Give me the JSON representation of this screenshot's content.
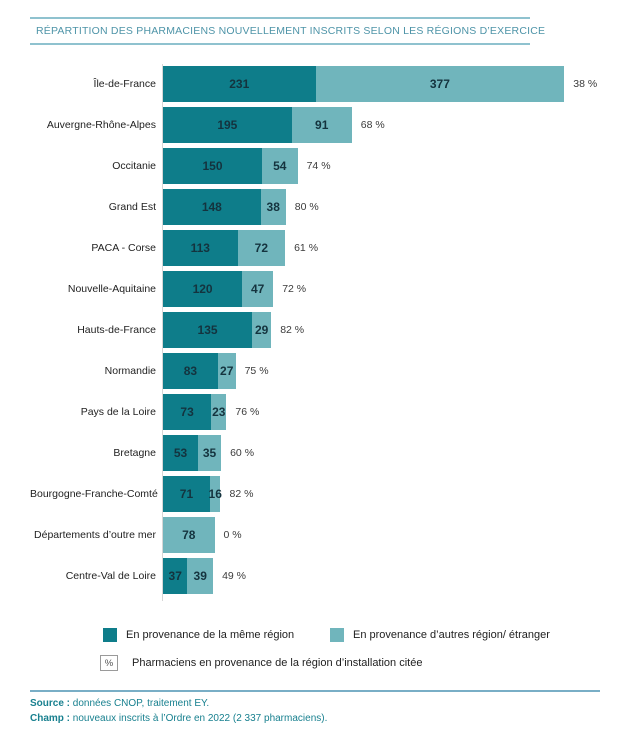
{
  "title": "RÉPARTITION DES PHARMACIENS NOUVELLEMENT INSCRITS SELON LES RÉGIONS D’EXERCICE",
  "colors": {
    "same_region": "#0E7D8A",
    "other_region": "#70B5BC",
    "title_text": "#4E94A8",
    "title_rule": "#8FC2CF",
    "footer_text": "#18808F",
    "footer_rule": "#79AEC6",
    "bar_value_text": "#14333E"
  },
  "chart_data": {
    "type": "bar",
    "orientation": "horizontal",
    "stacked": true,
    "grid": false,
    "legend_position": "bottom",
    "value_axis_max": 620,
    "categories": [
      "Île-de-France",
      "Auvergne-Rhône-Alpes",
      "Occitanie",
      "Grand Est",
      "PACA - Corse",
      "Nouvelle-Aquitaine",
      "Hauts-de-France",
      "Normandie",
      "Pays de la Loire",
      "Bretagne",
      "Bourgogne-Franche-Comté",
      "Départements d’outre mer",
      "Centre-Val de Loire"
    ],
    "series": [
      {
        "name": "En provenance de la même région",
        "color": "#0E7D8A",
        "values": [
          231,
          195,
          150,
          148,
          113,
          120,
          135,
          83,
          73,
          53,
          71,
          0,
          37
        ]
      },
      {
        "name": "En provenance d’autres région/ étranger",
        "color": "#70B5BC",
        "values": [
          377,
          91,
          54,
          38,
          72,
          47,
          29,
          27,
          23,
          35,
          16,
          78,
          39
        ]
      }
    ],
    "percent_labels": [
      "38 %",
      "68 %",
      "74 %",
      "80 %",
      "61 %",
      "72 %",
      "82 %",
      "75 %",
      "76 %",
      "60 %",
      "82 %",
      "0 %",
      "49 %"
    ]
  },
  "legend": {
    "same_region": "En provenance de la même région",
    "other_region": "En provenance d’autres région/ étranger",
    "percent_symbol": "%",
    "percent_note": "Pharmaciens en provenance de la région d’installation citée"
  },
  "footer": {
    "source_label": "Source :",
    "source_text": "données CNOP, traitement EY.",
    "champ_label": "Champ :",
    "champ_text": "nouveaux inscrits à l’Ordre en 2022 (2 337 pharmaciens)."
  }
}
